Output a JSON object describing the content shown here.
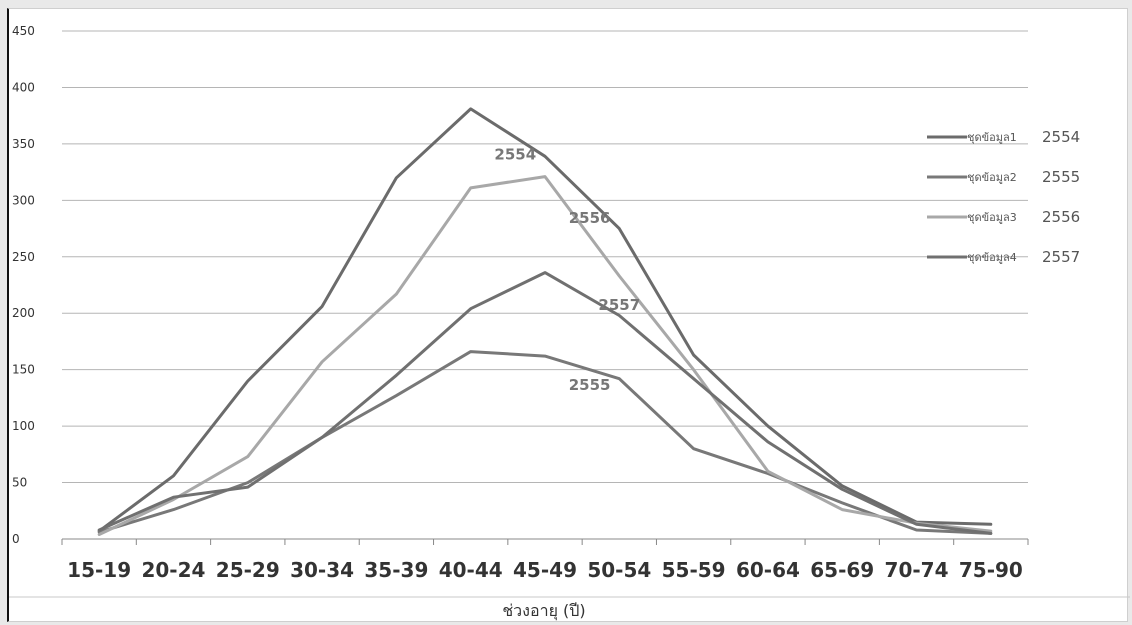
{
  "chart_data": {
    "type": "line",
    "xlabel": "ช่วงอายุ (ปี)",
    "ylabel": "",
    "ylim": [
      0,
      450
    ],
    "y_ticks": [
      0,
      50,
      100,
      150,
      200,
      250,
      300,
      350,
      400,
      450
    ],
    "categories": [
      "15-19",
      "20-24",
      "25-29",
      "30-34",
      "35-39",
      "40-44",
      "45-49",
      "50-54",
      "55-59",
      "60-64",
      "65-69",
      "70-74",
      "75-90"
    ],
    "grid": "horizontal",
    "legend_position": "right",
    "series": [
      {
        "name": "ชุดข้อมูล1",
        "legend_year": "2554",
        "color": "#6b6b6b",
        "values": [
          7,
          56,
          140,
          206,
          320,
          381,
          339,
          275,
          163,
          100,
          47,
          15,
          13
        ]
      },
      {
        "name": "ชุดข้อมูล2",
        "legend_year": "2555",
        "color": "#787878",
        "values": [
          6,
          26,
          50,
          90,
          127,
          166,
          162,
          142,
          80,
          58,
          32,
          8,
          5
        ]
      },
      {
        "name": "ชุดข้อมูล3",
        "legend_year": "2556",
        "color": "#a8a8a8",
        "values": [
          4,
          35,
          73,
          157,
          217,
          311,
          321,
          233,
          150,
          60,
          26,
          14,
          7
        ]
      },
      {
        "name": "ชุดข้อมูล4",
        "legend_year": "2557",
        "color": "#707070",
        "values": [
          8,
          37,
          46,
          90,
          145,
          204,
          236,
          198,
          142,
          86,
          44,
          13,
          5
        ]
      }
    ],
    "annotations": [
      {
        "text": "2554",
        "x": 5.6,
        "y": 336
      },
      {
        "text": "2556",
        "x": 6.6,
        "y": 280
      },
      {
        "text": "2557",
        "x": 7.0,
        "y": 203
      },
      {
        "text": "2555",
        "x": 6.6,
        "y": 132
      }
    ]
  }
}
